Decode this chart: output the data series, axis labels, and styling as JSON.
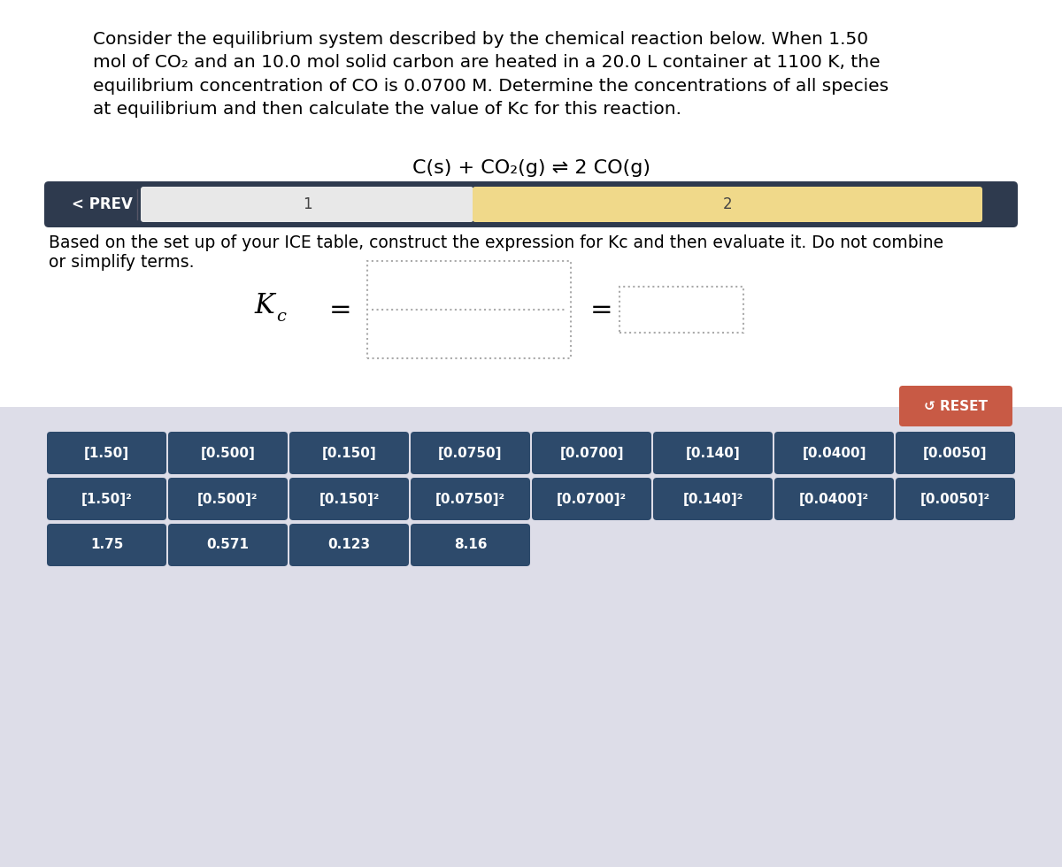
{
  "title_text": "Consider the equilibrium system described by the chemical reaction below. When 1.50\nmol of CO₂ and an 10.0 mol solid carbon are heated in a 20.0 L container at 1100 K, the\nequilibrium concentration of CO is 0.0700 M. Determine the concentrations of all species\nat equilibrium and then calculate the value of Kc for this reaction.",
  "reaction_text": "C(s) + CO₂(g) ⇌ 2 CO(g)",
  "nav_bg": "#2e3a4e",
  "nav_text_color": "#ffffff",
  "tab1_bg": "#e8e8e8",
  "tab2_bg": "#f0d98a",
  "tab1_text": "1",
  "tab2_text": "2",
  "prev_text": "< PREV",
  "instruction_line1": "Based on the set up of your ICE table, construct the expression for Kc and then evaluate it. Do not combine",
  "instruction_line2": "or simplify terms.",
  "bottom_bg": "#dddde8",
  "button_bg": "#2d4a6b",
  "button_text_color": "#ffffff",
  "reset_bg": "#c85a45",
  "reset_text": "↺ RESET",
  "row1_buttons": [
    "[1.50]",
    "[0.500]",
    "[0.150]",
    "[0.0750]",
    "[0.0700]",
    "[0.140]",
    "[0.0400]",
    "[0.0050]"
  ],
  "row2_buttons": [
    "[1.50]²",
    "[0.500]²",
    "[0.150]²",
    "[0.0750]²",
    "[0.0700]²",
    "[0.140]²",
    "[0.0400]²",
    "[0.0050]²"
  ],
  "row3_buttons": [
    "1.75",
    "0.571",
    "0.123",
    "8.16"
  ],
  "fig_width": 12.0,
  "fig_height": 9.8
}
